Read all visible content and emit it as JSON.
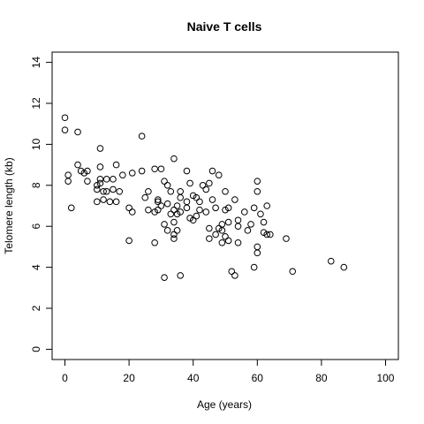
{
  "chart_data": {
    "type": "scatter",
    "title": "Naive T cells",
    "xlabel": "Age (years)",
    "ylabel": "Telomere length (kb)",
    "xlim": [
      -4,
      104
    ],
    "ylim": [
      -0.5,
      14.5
    ],
    "xticks": [
      0,
      20,
      40,
      60,
      80,
      100
    ],
    "yticks": [
      0,
      2,
      4,
      6,
      8,
      10,
      12,
      14
    ],
    "grid": false,
    "legend": "none",
    "marker": "open-circle",
    "points": [
      [
        0,
        11.3
      ],
      [
        0,
        10.7
      ],
      [
        1,
        8.5
      ],
      [
        1,
        8.2
      ],
      [
        2,
        6.9
      ],
      [
        4,
        10.6
      ],
      [
        4,
        9.0
      ],
      [
        5,
        8.7
      ],
      [
        6,
        8.6
      ],
      [
        7,
        8.7
      ],
      [
        7,
        8.2
      ],
      [
        10,
        8.0
      ],
      [
        10,
        7.8
      ],
      [
        10,
        7.2
      ],
      [
        11,
        9.8
      ],
      [
        11,
        8.3
      ],
      [
        11,
        8.1
      ],
      [
        11,
        8.9
      ],
      [
        12,
        7.7
      ],
      [
        12,
        7.3
      ],
      [
        13,
        8.3
      ],
      [
        13,
        7.7
      ],
      [
        14,
        7.2
      ],
      [
        15,
        8.3
      ],
      [
        15,
        7.8
      ],
      [
        16,
        9.0
      ],
      [
        16,
        7.2
      ],
      [
        17,
        7.7
      ],
      [
        18,
        8.5
      ],
      [
        20,
        6.9
      ],
      [
        20,
        5.3
      ],
      [
        21,
        8.6
      ],
      [
        21,
        6.7
      ],
      [
        24,
        10.4
      ],
      [
        24,
        8.7
      ],
      [
        25,
        7.4
      ],
      [
        26,
        7.7
      ],
      [
        26,
        6.8
      ],
      [
        28,
        8.8
      ],
      [
        28,
        6.7
      ],
      [
        28,
        5.2
      ],
      [
        29,
        7.3
      ],
      [
        29,
        7.2
      ],
      [
        29,
        6.8
      ],
      [
        30,
        8.8
      ],
      [
        30,
        7.0
      ],
      [
        31,
        8.2
      ],
      [
        31,
        6.1
      ],
      [
        31,
        3.5
      ],
      [
        32,
        8.0
      ],
      [
        32,
        7.1
      ],
      [
        32,
        5.8
      ],
      [
        33,
        7.7
      ],
      [
        33,
        6.6
      ],
      [
        34,
        9.3
      ],
      [
        34,
        6.8
      ],
      [
        34,
        6.2
      ],
      [
        34,
        5.6
      ],
      [
        34,
        5.4
      ],
      [
        35,
        7.0
      ],
      [
        35,
        5.8
      ],
      [
        35,
        6.6
      ],
      [
        36,
        7.7
      ],
      [
        36,
        7.4
      ],
      [
        36,
        6.7
      ],
      [
        36,
        3.6
      ],
      [
        38,
        8.7
      ],
      [
        38,
        6.9
      ],
      [
        38,
        7.2
      ],
      [
        39,
        8.1
      ],
      [
        39,
        6.4
      ],
      [
        40,
        7.5
      ],
      [
        40,
        6.3
      ],
      [
        41,
        7.4
      ],
      [
        41,
        6.5
      ],
      [
        42,
        7.2
      ],
      [
        42,
        6.8
      ],
      [
        43,
        8.0
      ],
      [
        44,
        6.7
      ],
      [
        44,
        7.8
      ],
      [
        45,
        8.1
      ],
      [
        45,
        5.9
      ],
      [
        45,
        5.4
      ],
      [
        46,
        8.7
      ],
      [
        46,
        7.3
      ],
      [
        47,
        6.9
      ],
      [
        47,
        5.6
      ],
      [
        48,
        8.5
      ],
      [
        48,
        5.9
      ],
      [
        49,
        6.1
      ],
      [
        49,
        5.8
      ],
      [
        49,
        5.2
      ],
      [
        50,
        7.7
      ],
      [
        50,
        6.8
      ],
      [
        50,
        5.5
      ],
      [
        51,
        6.9
      ],
      [
        51,
        6.2
      ],
      [
        51,
        5.3
      ],
      [
        52,
        3.8
      ],
      [
        53,
        7.3
      ],
      [
        53,
        3.6
      ],
      [
        54,
        5.2
      ],
      [
        54,
        6.3
      ],
      [
        54,
        6.0
      ],
      [
        56,
        6.7
      ],
      [
        57,
        5.8
      ],
      [
        58,
        6.1
      ],
      [
        59,
        6.9
      ],
      [
        59,
        4.0
      ],
      [
        60,
        8.2
      ],
      [
        60,
        7.7
      ],
      [
        60,
        5.0
      ],
      [
        60,
        4.7
      ],
      [
        61,
        6.6
      ],
      [
        62,
        6.2
      ],
      [
        62,
        5.7
      ],
      [
        63,
        7.0
      ],
      [
        63,
        5.6
      ],
      [
        64,
        5.6
      ],
      [
        69,
        5.4
      ],
      [
        71,
        3.8
      ],
      [
        83,
        4.3
      ],
      [
        87,
        4.0
      ]
    ]
  }
}
